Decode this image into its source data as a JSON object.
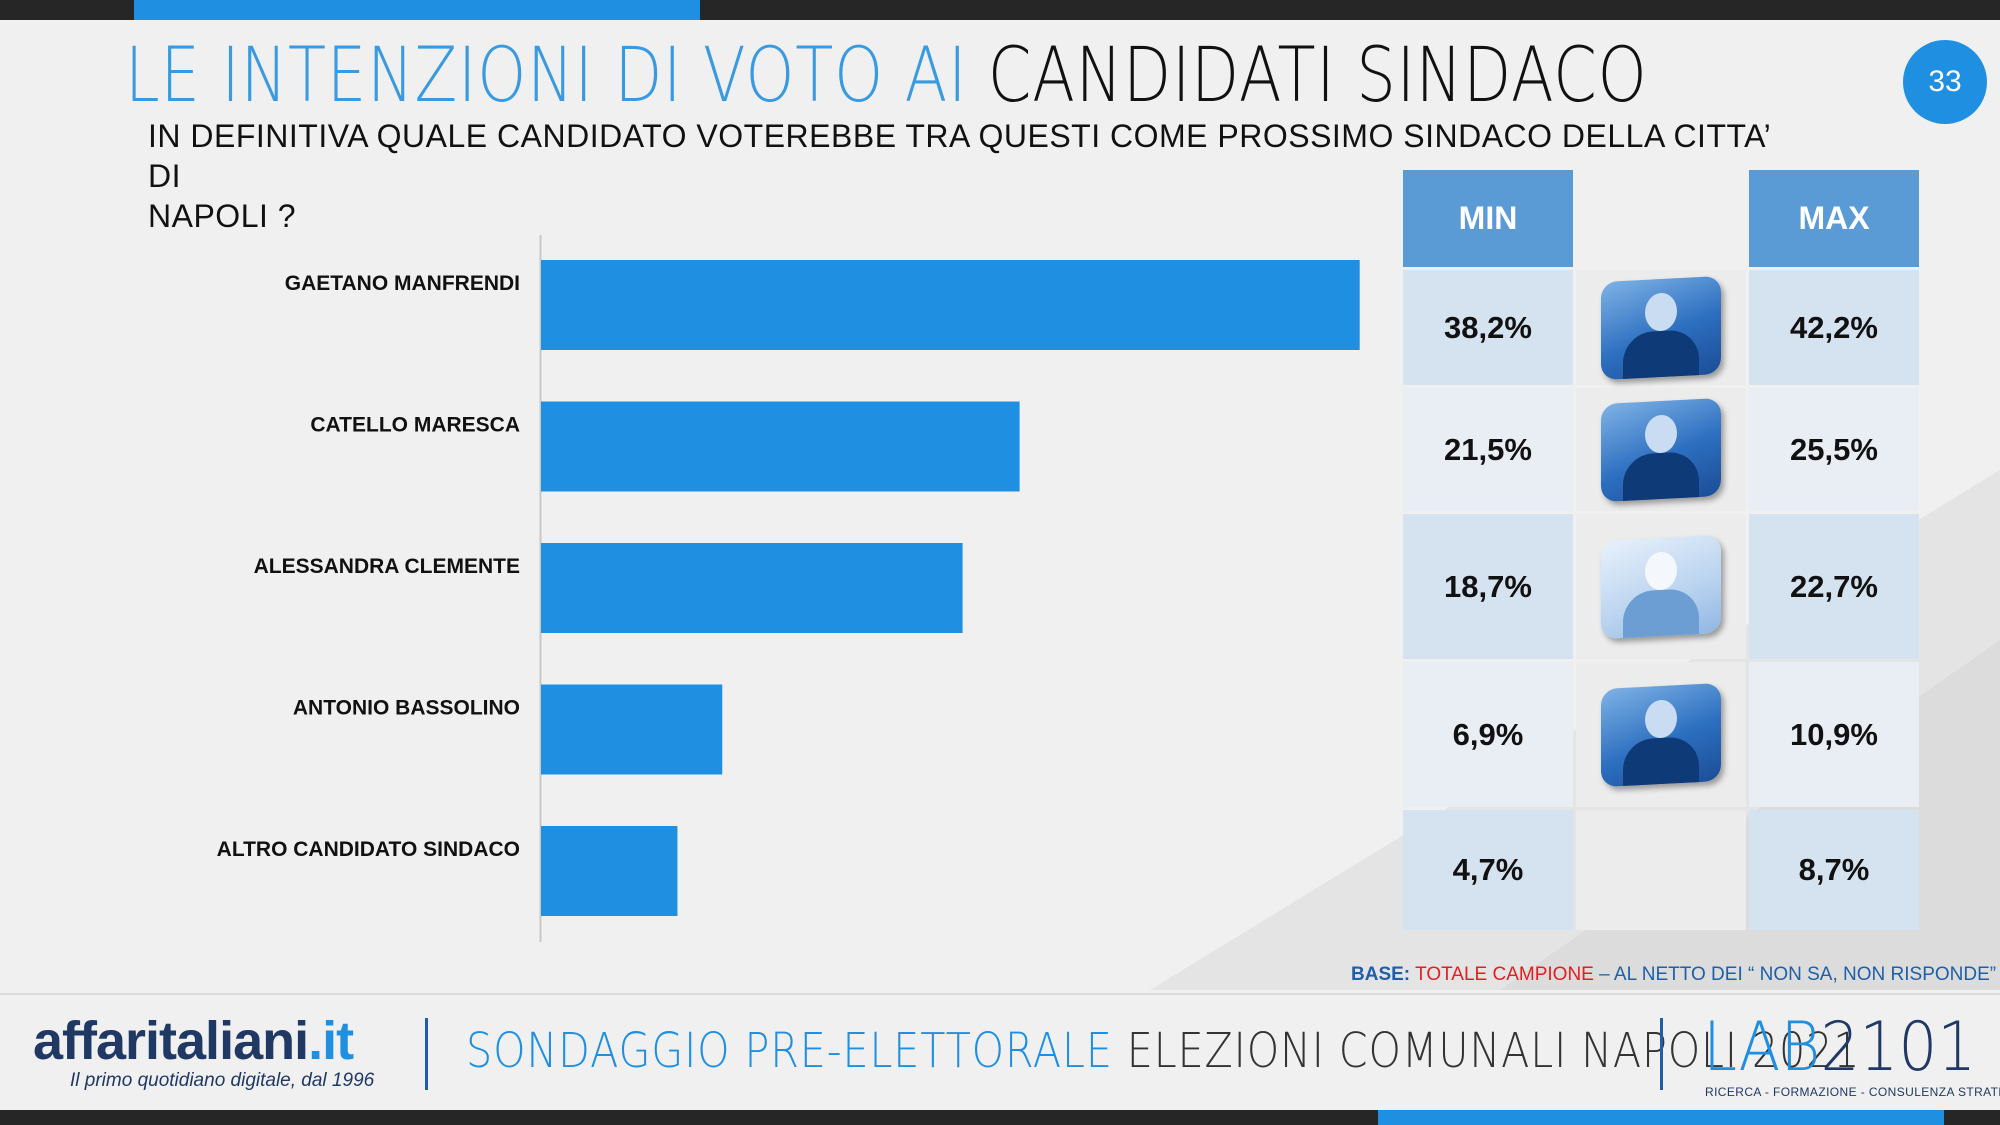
{
  "header": {
    "title_part1": "LE INTENZIONI DI VOTO AI",
    "title_part2": "CANDIDATI SINDACO",
    "page_number": "33",
    "question_line1": "IN DEFINITIVA QUALE CANDIDATO VOTEREBBE TRA QUESTI COME PROSSIMO SINDACO DELLA CITTA’ DI",
    "question_line2": "NAPOLI ?"
  },
  "chart_data": {
    "type": "bar",
    "orientation": "horizontal",
    "categories": [
      "GAETANO MANFRENDI",
      "CATELLO MARESCA",
      "ALESSANDRA CLEMENTE",
      "ANTONIO BASSOLINO",
      "ALTRO CANDIDATO SINDACO"
    ],
    "values": [
      40.2,
      23.5,
      20.7,
      8.9,
      6.7
    ],
    "bar_color": "#1e8fe1",
    "xlim": [
      0,
      41
    ]
  },
  "range_table": {
    "min_header": "MIN",
    "max_header": "MAX",
    "rows": [
      {
        "min": "38,2%",
        "max": "42,2%",
        "photo": "portrait-gaetano-manfredi",
        "photo_style": "blue"
      },
      {
        "min": "21,5%",
        "max": "25,5%",
        "photo": "portrait-catello-maresca",
        "photo_style": "blue"
      },
      {
        "min": "18,7%",
        "max": "22,7%",
        "photo": "portrait-alessandra-clemente",
        "photo_style": "light"
      },
      {
        "min": "6,9%",
        "max": "10,9%",
        "photo": "portrait-antonio-bassolino",
        "photo_style": "blue"
      },
      {
        "min": "4,7%",
        "max": "8,7%",
        "photo": "",
        "photo_style": "none"
      }
    ]
  },
  "base_note": {
    "label": "BASE:",
    "sample": "TOTALE CAMPIONE",
    "rest": " – AL NETTO DEI “ NON SA, NON RISPONDE”"
  },
  "footer": {
    "logo_main": "affaritaliani",
    "logo_tld": ".it",
    "logo_tagline": "Il primo quotidiano digitale, dal 1996",
    "survey_part1": "SONDAGGIO PRE-ELETTORALE",
    "survey_part2": " ELEZIONI COMUNALI NAPOLI 2021",
    "lab_part1": "LAB",
    "lab_part2": "2101",
    "lab_tagline": "RICERCA - FORMAZIONE - CONSULENZA STRATEGICA"
  },
  "colors": {
    "accent": "#1e8fe1",
    "dark": "#262626",
    "header_cell": "#5a9bd5",
    "red": "#e02020"
  }
}
